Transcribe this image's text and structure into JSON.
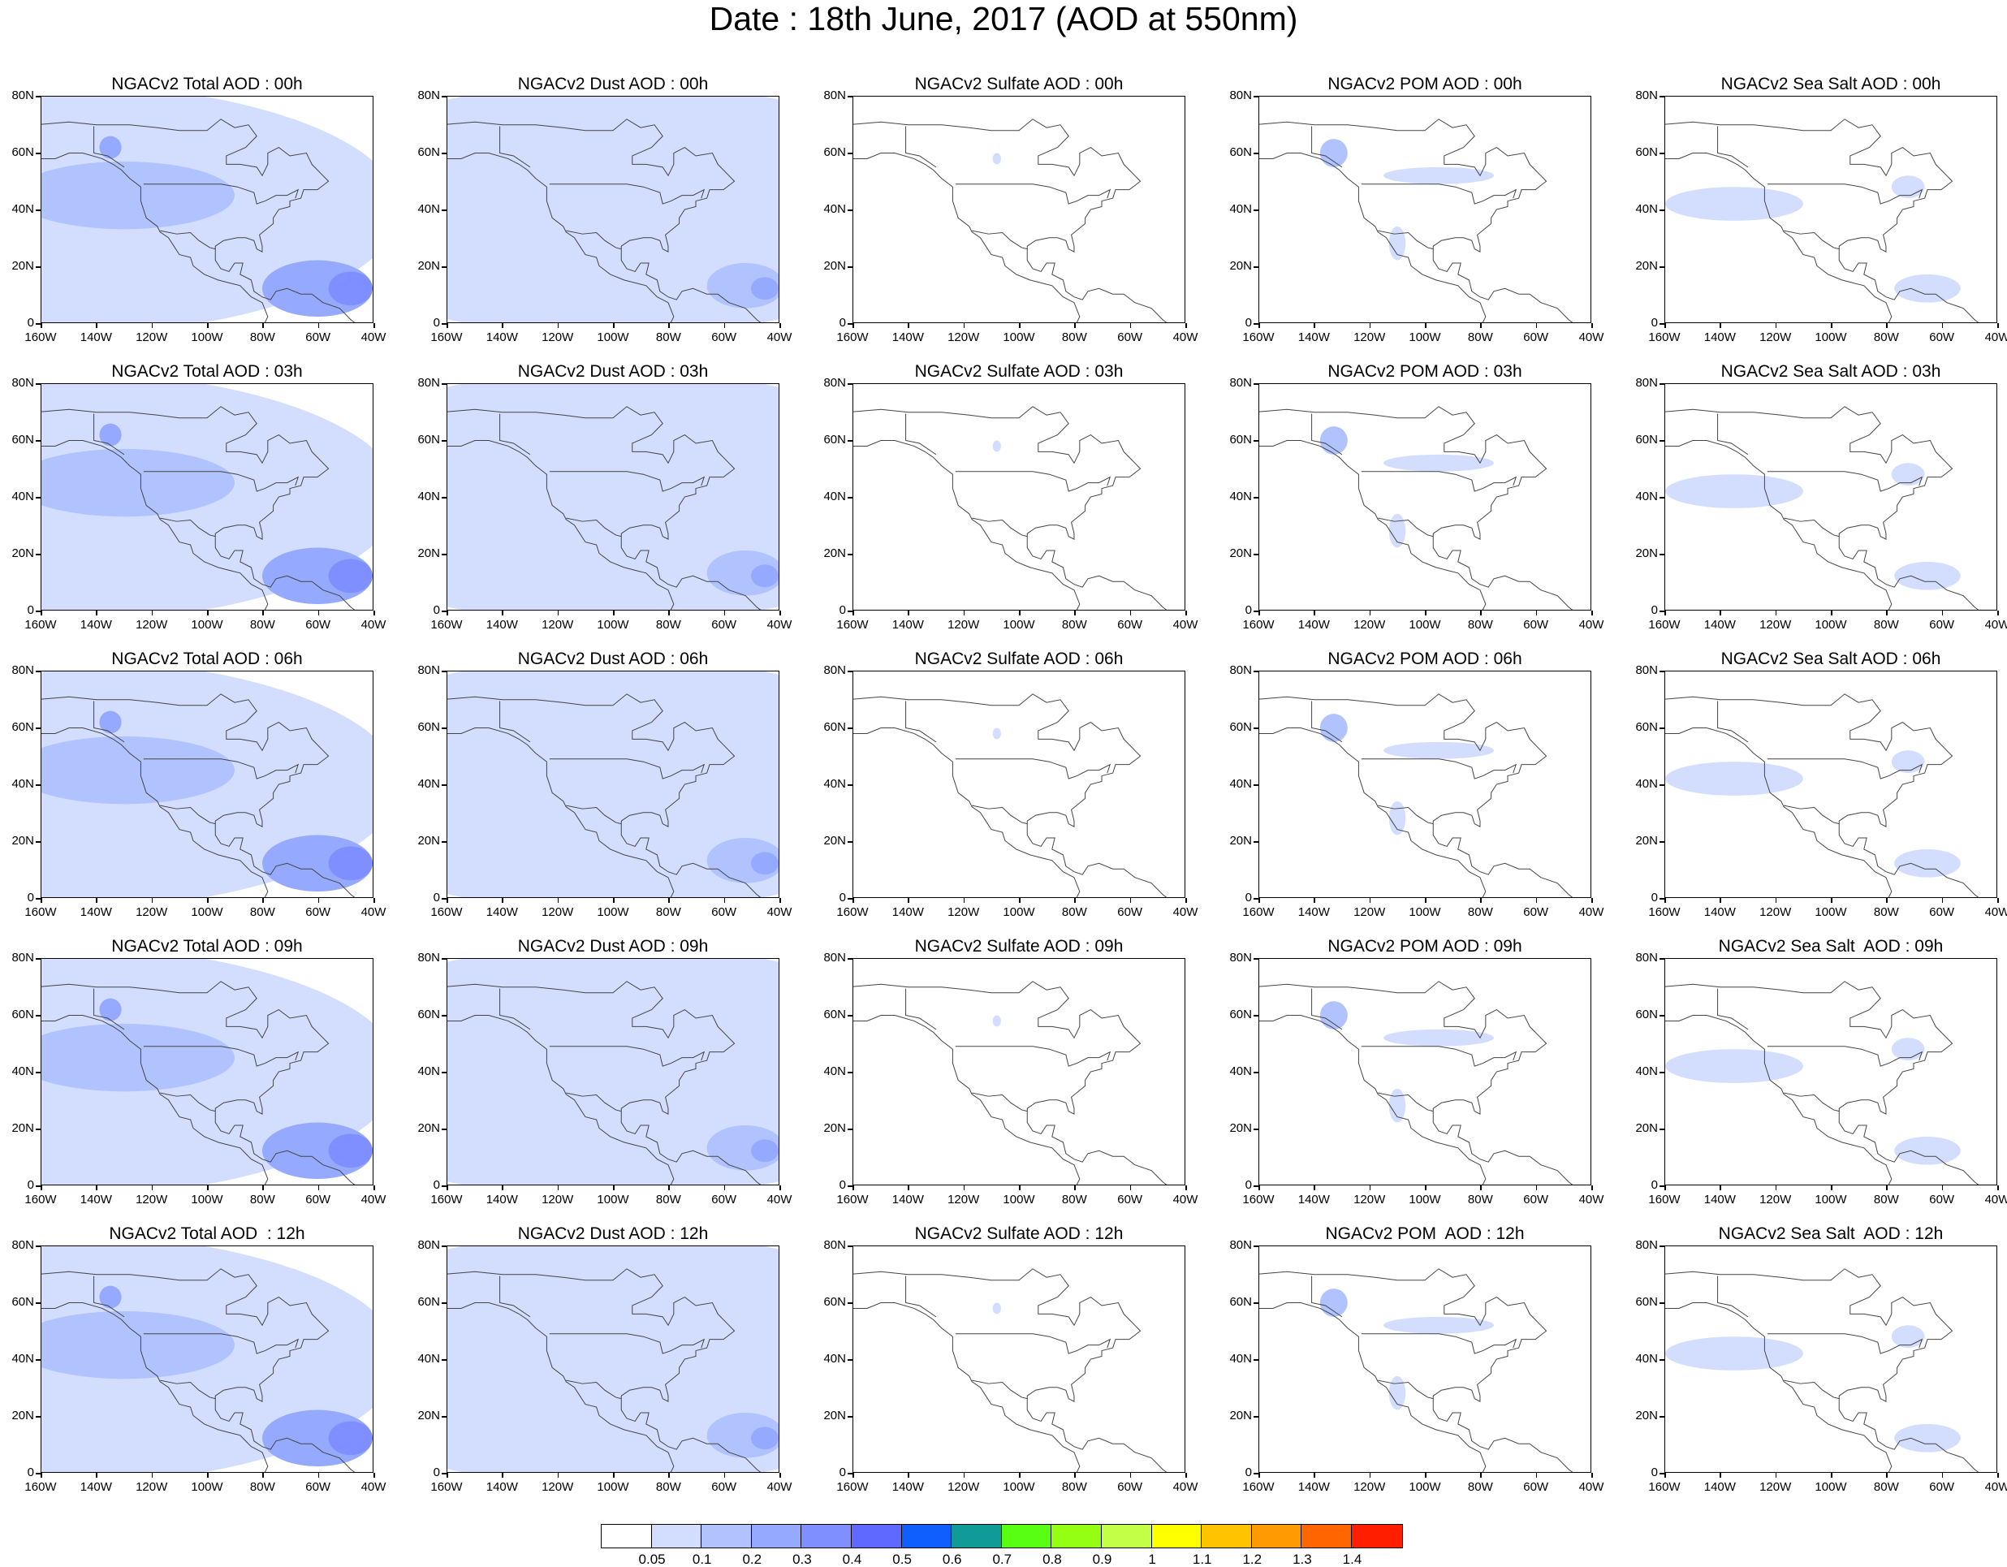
{
  "title": "Date : 18th June, 2017 (AOD at 550nm)",
  "axes": {
    "lat_labels": [
      "80N",
      "60N",
      "40N",
      "20N",
      "0"
    ],
    "lon_labels": [
      "160W",
      "140W",
      "120W",
      "100W",
      "80W",
      "60W",
      "40W"
    ],
    "lon_range": [
      -160,
      -40
    ],
    "lat_range": [
      0,
      80
    ]
  },
  "panels": [
    [
      "NGACv2 Total AOD : 00h",
      "NGACv2 Dust AOD : 00h",
      "NGACv2 Sulfate AOD : 00h",
      "NGACv2 POM AOD : 00h",
      "NGACv2 Sea Salt AOD : 00h"
    ],
    [
      "NGACv2 Total AOD : 03h",
      "NGACv2 Dust AOD : 03h",
      "NGACv2 Sulfate AOD : 03h",
      "NGACv2 POM AOD : 03h",
      "NGACv2 Sea Salt AOD : 03h"
    ],
    [
      "NGACv2 Total AOD : 06h",
      "NGACv2 Dust AOD : 06h",
      "NGACv2 Sulfate AOD : 06h",
      "NGACv2 POM AOD : 06h",
      "NGACv2 Sea Salt AOD : 06h"
    ],
    [
      "NGACv2 Total AOD : 09h",
      "NGACv2 Dust AOD : 09h",
      "NGACv2 Sulfate AOD : 09h",
      "NGACv2 POM AOD : 09h",
      "NGACv2 Sea Salt  AOD : 09h"
    ],
    [
      "NGACv2 Total AOD  : 12h",
      "NGACv2 Dust AOD : 12h",
      "NGACv2 Sulfate AOD : 12h",
      "NGACv2 POM  AOD : 12h",
      "NGACv2 Sea Salt  AOD : 12h"
    ]
  ],
  "colorbar": {
    "labels": [
      "0.05",
      "0.1",
      "0.2",
      "0.3",
      "0.4",
      "0.5",
      "0.6",
      "0.7",
      "0.8",
      "0.9",
      "1",
      "1.1",
      "1.2",
      "1.3",
      "1.4"
    ],
    "colors": [
      "#ffffff",
      "#d3deff",
      "#b1c3ff",
      "#95a9ff",
      "#7f8fff",
      "#5f69ff",
      "#0f5fff",
      "#109a98",
      "#58ff13",
      "#95ff13",
      "#c4ff48",
      "#ffff00",
      "#ffc300",
      "#ff9a00",
      "#ff6600",
      "#ff1f00"
    ]
  },
  "chart_data": {
    "type": "heatmap",
    "variable": "AOD at 550nm",
    "note_levels": [
      0.05,
      0.1,
      0.2,
      0.3,
      0.4,
      0.5,
      0.6,
      0.7,
      0.8,
      0.9,
      1,
      1.1,
      1.2,
      1.3,
      1.4
    ],
    "species": [
      "Total",
      "Dust",
      "Sulfate",
      "POM",
      "Sea Salt"
    ],
    "times": [
      "00h",
      "03h",
      "06h",
      "09h",
      "12h"
    ]
  }
}
